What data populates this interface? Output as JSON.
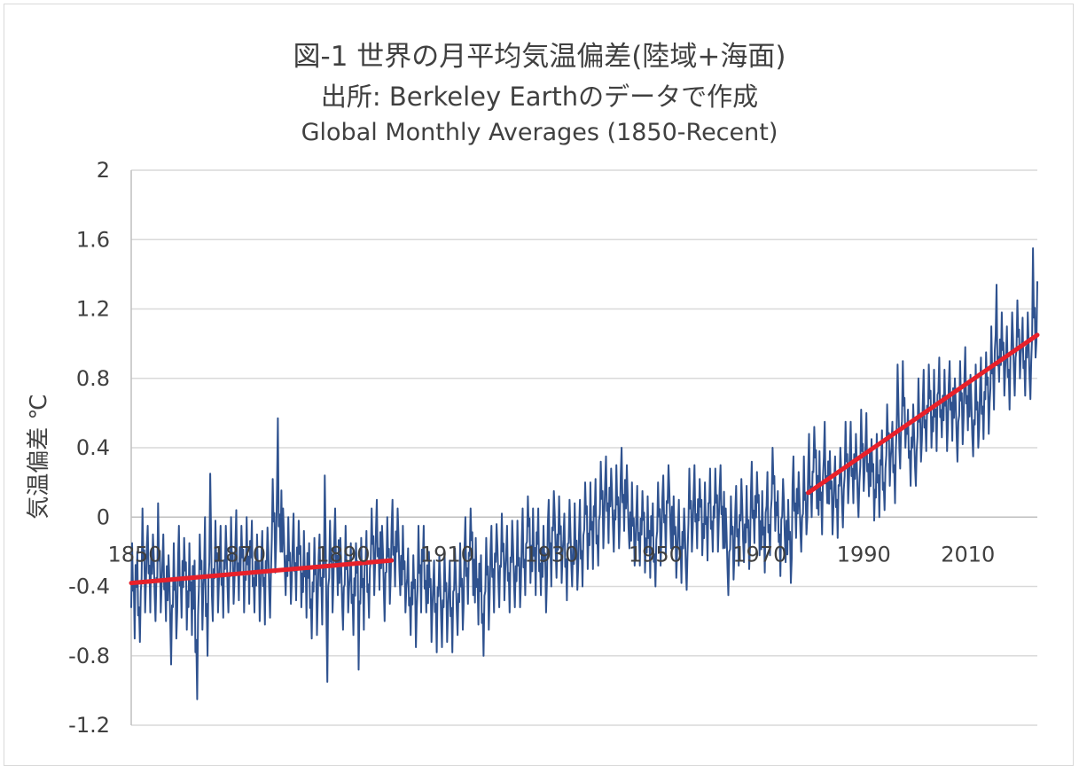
{
  "titles": {
    "line1": "図-1 世界の月平均気温偏差(陸域+海面)",
    "line2": "出所: Berkeley Earthのデータで作成",
    "line3": "Global Monthly Averages (1850-Recent)"
  },
  "chart_data": {
    "type": "line",
    "title": "図-1 世界の月平均気温偏差(陸域+海面)",
    "subtitle": "出所: Berkeley Earthのデータで作成 / Global Monthly Averages (1850-Recent)",
    "xlabel": "",
    "ylabel": "気温偏差 ℃",
    "xlim": [
      1850,
      2024
    ],
    "ylim": [
      -1.2,
      2
    ],
    "y_ticks": [
      2,
      1.6,
      1.2,
      0.8,
      0.4,
      0,
      -0.4,
      -0.8,
      -1.2
    ],
    "y_tick_labels": [
      "2",
      "1.6",
      "1.2",
      "0.8",
      "0.4",
      "0",
      "-0.4",
      "-0.8",
      "-1.2"
    ],
    "x_ticks": [
      1850,
      1870,
      1890,
      1910,
      1930,
      1950,
      1970,
      1990,
      2010
    ],
    "x_tick_labels": [
      "1850",
      "1870",
      "1890",
      "1910",
      "1930",
      "1950",
      "1970",
      "1990",
      "2010"
    ],
    "x_tick_label_position": "on zero line",
    "grid": "horizontal",
    "legend": "none",
    "series": [
      {
        "kind": "monthly anomaly (approx. yearly mean, min, max)",
        "color": "#2f528f",
        "x": [
          1850,
          1851,
          1852,
          1853,
          1854,
          1855,
          1856,
          1857,
          1858,
          1859,
          1860,
          1861,
          1862,
          1863,
          1864,
          1865,
          1866,
          1867,
          1868,
          1869,
          1870,
          1871,
          1872,
          1873,
          1874,
          1875,
          1876,
          1877,
          1878,
          1879,
          1880,
          1881,
          1882,
          1883,
          1884,
          1885,
          1886,
          1887,
          1888,
          1889,
          1890,
          1891,
          1892,
          1893,
          1894,
          1895,
          1896,
          1897,
          1898,
          1899,
          1900,
          1901,
          1902,
          1903,
          1904,
          1905,
          1906,
          1907,
          1908,
          1909,
          1910,
          1911,
          1912,
          1913,
          1914,
          1915,
          1916,
          1917,
          1918,
          1919,
          1920,
          1921,
          1922,
          1923,
          1924,
          1925,
          1926,
          1927,
          1928,
          1929,
          1930,
          1931,
          1932,
          1933,
          1934,
          1935,
          1936,
          1937,
          1938,
          1939,
          1940,
          1941,
          1942,
          1943,
          1944,
          1945,
          1946,
          1947,
          1948,
          1949,
          1950,
          1951,
          1952,
          1953,
          1954,
          1955,
          1956,
          1957,
          1958,
          1959,
          1960,
          1961,
          1962,
          1963,
          1964,
          1965,
          1966,
          1967,
          1968,
          1969,
          1970,
          1971,
          1972,
          1973,
          1974,
          1975,
          1976,
          1977,
          1978,
          1979,
          1980,
          1981,
          1982,
          1983,
          1984,
          1985,
          1986,
          1987,
          1988,
          1989,
          1990,
          1991,
          1992,
          1993,
          1994,
          1995,
          1996,
          1997,
          1998,
          1999,
          2000,
          2001,
          2002,
          2003,
          2004,
          2005,
          2006,
          2007,
          2008,
          2009,
          2010,
          2011,
          2012,
          2013,
          2014,
          2015,
          2016,
          2017,
          2018,
          2019,
          2020,
          2021,
          2022,
          2023,
          2024
        ],
        "y": [
          -0.4,
          -0.45,
          -0.3,
          -0.28,
          -0.35,
          -0.28,
          -0.35,
          -0.48,
          -0.42,
          -0.3,
          -0.38,
          -0.4,
          -0.6,
          -0.35,
          -0.5,
          -0.3,
          -0.28,
          -0.32,
          -0.3,
          -0.25,
          -0.22,
          -0.3,
          -0.25,
          -0.28,
          -0.35,
          -0.35,
          -0.32,
          -0.05,
          0.05,
          -0.2,
          -0.25,
          -0.22,
          -0.28,
          -0.32,
          -0.4,
          -0.38,
          -0.35,
          -0.4,
          -0.28,
          -0.2,
          -0.38,
          -0.3,
          -0.4,
          -0.42,
          -0.38,
          -0.32,
          -0.2,
          -0.18,
          -0.32,
          -0.25,
          -0.15,
          -0.2,
          -0.3,
          -0.42,
          -0.48,
          -0.3,
          -0.3,
          -0.45,
          -0.5,
          -0.48,
          -0.45,
          -0.5,
          -0.42,
          -0.4,
          -0.25,
          -0.2,
          -0.38,
          -0.48,
          -0.38,
          -0.3,
          -0.28,
          -0.22,
          -0.3,
          -0.26,
          -0.28,
          -0.2,
          -0.12,
          -0.2,
          -0.2,
          -0.3,
          -0.15,
          -0.1,
          -0.12,
          -0.22,
          -0.15,
          -0.18,
          -0.15,
          -0.05,
          -0.05,
          -0.04,
          0.06,
          0.08,
          0.04,
          0.05,
          0.15,
          0.05,
          -0.05,
          -0.05,
          -0.08,
          -0.1,
          -0.15,
          -0.04,
          0.01,
          0.06,
          -0.12,
          -0.15,
          -0.18,
          0.05,
          0.06,
          0.0,
          -0.02,
          0.04,
          0.04,
          0.06,
          -0.2,
          -0.12,
          -0.05,
          -0.02,
          -0.06,
          0.08,
          0.02,
          -0.08,
          0.02,
          0.15,
          -0.1,
          -0.02,
          -0.15,
          0.1,
          0.02,
          0.1,
          0.22,
          0.28,
          0.12,
          0.3,
          0.12,
          0.1,
          0.16,
          0.3,
          0.3,
          0.22,
          0.38,
          0.35,
          0.2,
          0.22,
          0.26,
          0.4,
          0.3,
          0.5,
          0.62,
          0.4,
          0.4,
          0.55,
          0.6,
          0.62,
          0.6,
          0.68,
          0.6,
          0.66,
          0.55,
          0.65,
          0.72,
          0.58,
          0.62,
          0.68,
          0.7,
          0.85,
          1.0,
          0.92,
          0.85,
          0.92,
          1.02,
          0.92,
          0.92,
          1.15,
          1.3
        ],
        "y_min": [
          -0.7,
          -0.72,
          -0.55,
          -0.55,
          -0.6,
          -0.55,
          -0.6,
          -0.85,
          -0.7,
          -0.58,
          -0.65,
          -0.68,
          -1.05,
          -0.65,
          -0.8,
          -0.6,
          -0.55,
          -0.58,
          -0.55,
          -0.5,
          -0.48,
          -0.55,
          -0.5,
          -0.55,
          -0.6,
          -0.62,
          -0.58,
          -0.32,
          -0.2,
          -0.45,
          -0.5,
          -0.48,
          -0.52,
          -0.58,
          -0.7,
          -0.68,
          -0.62,
          -0.95,
          -0.55,
          -0.45,
          -0.65,
          -0.55,
          -0.68,
          -0.88,
          -0.65,
          -0.58,
          -0.45,
          -0.42,
          -0.6,
          -0.5,
          -0.4,
          -0.45,
          -0.55,
          -0.68,
          -0.75,
          -0.55,
          -0.55,
          -0.72,
          -0.78,
          -0.75,
          -0.72,
          -0.78,
          -0.68,
          -0.65,
          -0.5,
          -0.45,
          -0.62,
          -0.8,
          -0.65,
          -0.55,
          -0.52,
          -0.48,
          -0.55,
          -0.52,
          -0.52,
          -0.45,
          -0.38,
          -0.45,
          -0.45,
          -0.55,
          -0.4,
          -0.35,
          -0.38,
          -0.48,
          -0.4,
          -0.42,
          -0.4,
          -0.3,
          -0.3,
          -0.28,
          -0.18,
          -0.15,
          -0.2,
          -0.18,
          -0.08,
          -0.18,
          -0.28,
          -0.28,
          -0.32,
          -0.35,
          -0.4,
          -0.28,
          -0.22,
          -0.18,
          -0.35,
          -0.38,
          -0.42,
          -0.2,
          -0.18,
          -0.22,
          -0.25,
          -0.2,
          -0.2,
          -0.18,
          -0.45,
          -0.36,
          -0.28,
          -0.26,
          -0.3,
          -0.15,
          -0.22,
          -0.32,
          -0.22,
          -0.08,
          -0.34,
          -0.26,
          -0.38,
          -0.12,
          -0.2,
          -0.1,
          0.0,
          0.05,
          -0.1,
          0.08,
          -0.1,
          -0.12,
          -0.06,
          0.08,
          0.08,
          0.0,
          0.15,
          0.12,
          -0.02,
          0.0,
          0.04,
          0.18,
          0.08,
          0.28,
          0.4,
          0.18,
          0.18,
          0.32,
          0.38,
          0.4,
          0.38,
          0.46,
          0.38,
          0.44,
          0.32,
          0.42,
          0.5,
          0.35,
          0.4,
          0.45,
          0.48,
          0.62,
          0.78,
          0.7,
          0.62,
          0.7,
          0.8,
          0.7,
          0.68,
          0.92,
          1.08
        ],
        "y_max": [
          -0.15,
          -0.2,
          0.05,
          -0.05,
          -0.1,
          0.08,
          -0.1,
          -0.22,
          -0.15,
          -0.05,
          -0.12,
          -0.15,
          -0.25,
          -0.1,
          0.0,
          0.25,
          -0.02,
          -0.05,
          -0.05,
          0.0,
          0.04,
          -0.05,
          0.0,
          -0.02,
          -0.1,
          -0.08,
          -0.06,
          0.22,
          0.57,
          0.05,
          0.0,
          0.02,
          -0.02,
          -0.08,
          -0.15,
          -0.12,
          -0.1,
          0.24,
          -0.02,
          0.05,
          -0.12,
          -0.05,
          -0.15,
          -0.15,
          -0.12,
          -0.08,
          0.05,
          0.1,
          -0.05,
          0.0,
          0.1,
          0.05,
          -0.05,
          -0.18,
          -0.22,
          -0.05,
          -0.05,
          -0.2,
          -0.25,
          -0.22,
          -0.2,
          -0.25,
          -0.18,
          -0.15,
          0.0,
          0.05,
          -0.12,
          -0.22,
          -0.12,
          -0.05,
          -0.04,
          0.02,
          -0.05,
          -0.02,
          -0.02,
          0.05,
          0.12,
          0.05,
          0.05,
          -0.05,
          0.1,
          0.15,
          0.12,
          0.02,
          0.1,
          0.08,
          0.1,
          0.2,
          0.2,
          0.22,
          0.32,
          0.35,
          0.28,
          0.3,
          0.4,
          0.3,
          0.2,
          0.18,
          0.15,
          0.12,
          0.08,
          0.2,
          0.24,
          0.3,
          0.12,
          0.1,
          0.05,
          0.28,
          0.3,
          0.22,
          0.2,
          0.28,
          0.28,
          0.3,
          0.05,
          0.12,
          0.18,
          0.22,
          0.18,
          0.32,
          0.26,
          0.15,
          0.26,
          0.4,
          0.15,
          0.22,
          0.1,
          0.35,
          0.26,
          0.35,
          0.48,
          0.52,
          0.38,
          0.55,
          0.38,
          0.35,
          0.4,
          0.55,
          0.55,
          0.48,
          0.62,
          0.6,
          0.45,
          0.48,
          0.5,
          0.65,
          0.55,
          0.88,
          0.9,
          0.62,
          0.65,
          0.8,
          0.85,
          0.88,
          0.85,
          0.92,
          0.85,
          0.9,
          0.8,
          0.9,
          0.98,
          0.82,
          0.88,
          0.92,
          0.95,
          1.1,
          1.34,
          1.18,
          1.1,
          1.18,
          1.25,
          1.15,
          1.18,
          1.55,
          1.52
        ]
      },
      {
        "kind": "trend 1850-1900",
        "color": "#e8202a",
        "x": [
          1850,
          1900
        ],
        "y": [
          -0.38,
          -0.25
        ]
      },
      {
        "kind": "trend 1980-2024",
        "color": "#e8202a",
        "x": [
          1980,
          2024
        ],
        "y": [
          0.14,
          1.05
        ]
      }
    ]
  }
}
